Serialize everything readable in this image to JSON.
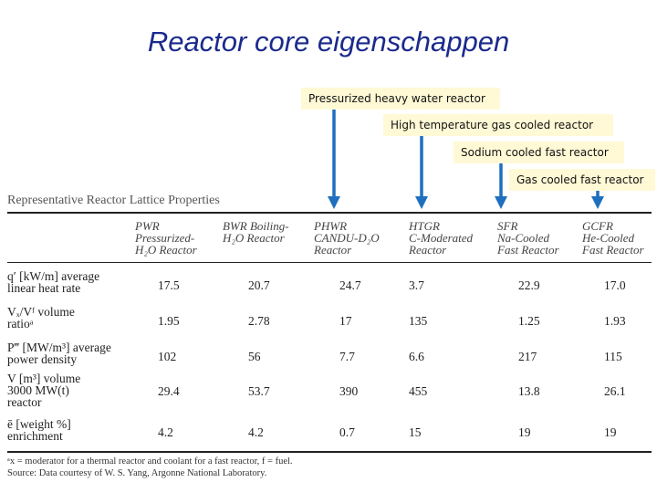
{
  "title": "Reactor core eigenschappen",
  "callouts": [
    "Pressurized heavy water reactor",
    "High temperature gas cooled reactor",
    "Sodium cooled fast reactor",
    "Gas cooled fast reactor"
  ],
  "table": {
    "caption": "Representative Reactor Lattice Properties",
    "columns": [
      [
        "PWR",
        "Pressurized-",
        "H₂O Reactor"
      ],
      [
        "BWR Boiling-",
        "H₂O Reactor"
      ],
      [
        "PHWR",
        "CANDU-D₂O",
        "Reactor"
      ],
      [
        "HTGR",
        "C-Moderated",
        "Reactor"
      ],
      [
        "SFR",
        "Na-Cooled",
        "Fast Reactor"
      ],
      [
        "GCFR",
        "He-Cooled",
        "Fast Reactor"
      ]
    ],
    "rows": [
      {
        "label": [
          "q′ [kW/m] average",
          "linear heat rate"
        ],
        "values": [
          "17.5",
          "20.7",
          "24.7",
          "3.7",
          "22.9",
          "17.0"
        ]
      },
      {
        "label": [
          "Vₓ/Vᶠ volume",
          "ratioᵃ"
        ],
        "values": [
          "1.95",
          "2.78",
          "17",
          "135",
          "1.25",
          "1.93"
        ]
      },
      {
        "label": [
          "P‴ [MW/m³] average",
          "power density"
        ],
        "values": [
          "102",
          "56",
          "7.7",
          "6.6",
          "217",
          "115"
        ]
      },
      {
        "label": [
          "V [m³] volume",
          "3000 MW(t)",
          "reactor"
        ],
        "values": [
          "29.4",
          "53.7",
          "390",
          "455",
          "13.8",
          "26.1"
        ]
      },
      {
        "label": [
          "ē [weight %]",
          "enrichment"
        ],
        "values": [
          "4.2",
          "4.2",
          "0.7",
          "15",
          "19",
          "19"
        ]
      }
    ],
    "footnote": "ᵃx = moderator for a thermal reactor and coolant for a fast reactor, f = fuel.",
    "source": "Source: Data courtesy of W. S. Yang, Argonne National Laboratory."
  },
  "colors": {
    "title": "#1a2a8c",
    "callout_bg": "#fff9d6",
    "arrow": "#1f6fbf"
  }
}
